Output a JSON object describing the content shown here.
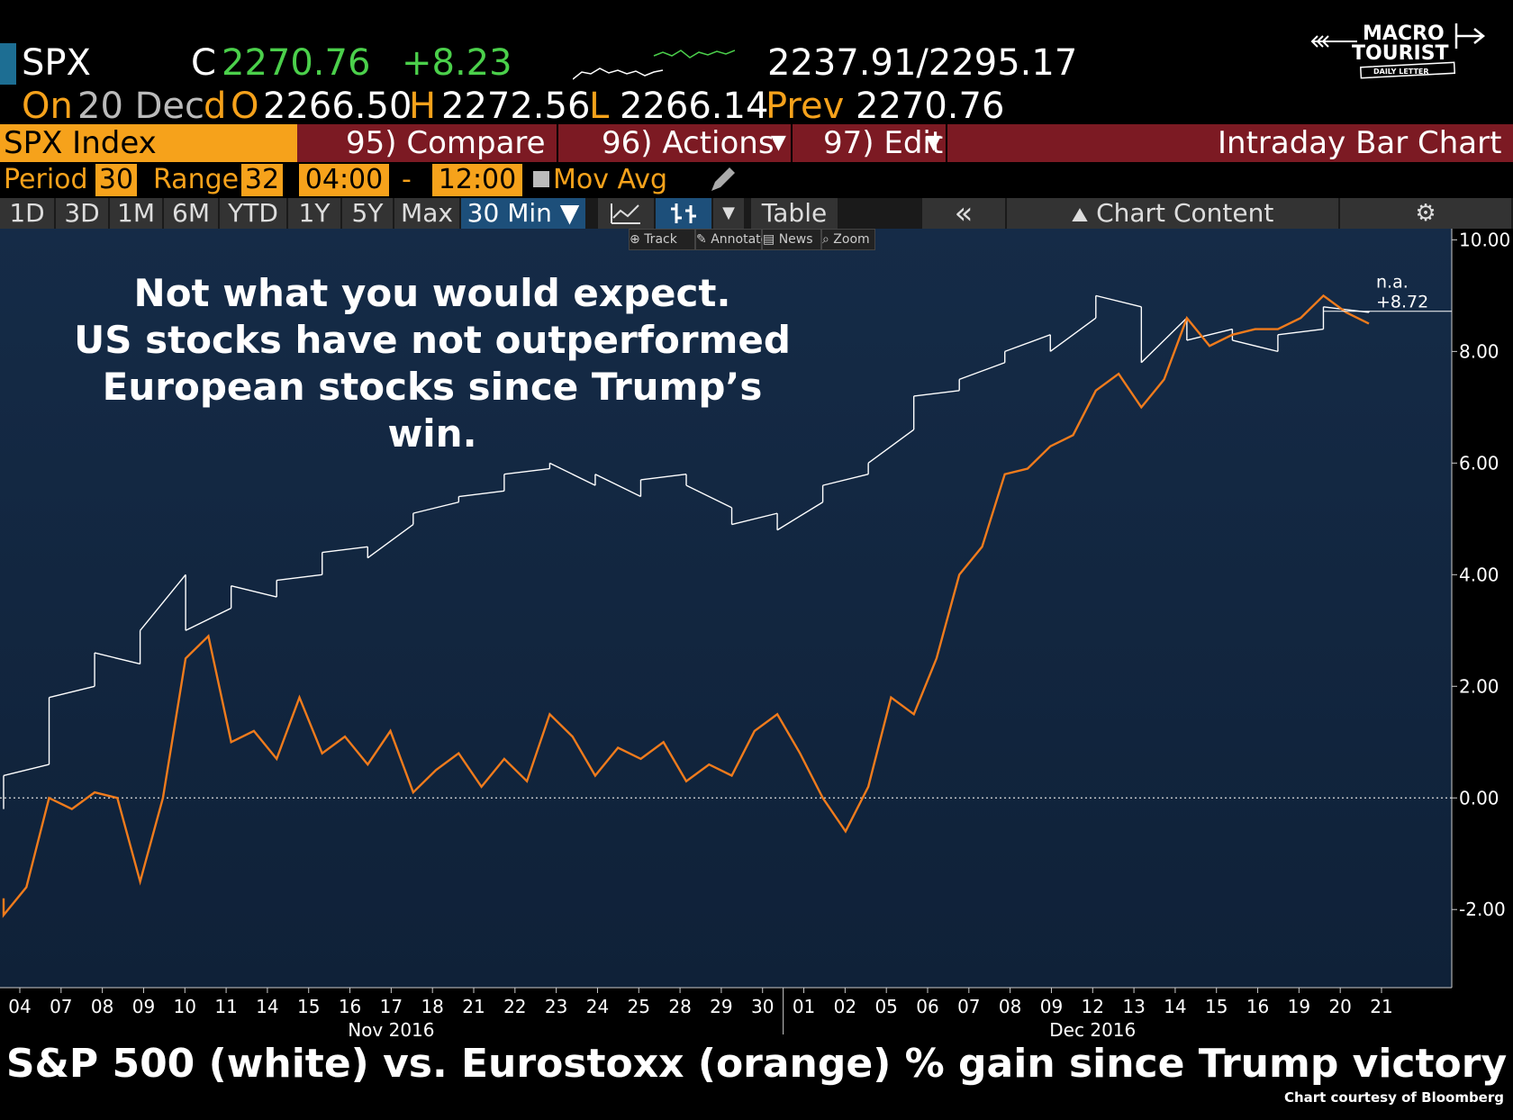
{
  "quote": {
    "ticker": "SPX",
    "close_label": "C",
    "close": "2270.76",
    "change": "+8.23",
    "range": "2237.91/2295.17",
    "on_label": "On",
    "date": "20 Dec",
    "d_label": "d",
    "open_label": "O",
    "open": "2266.50",
    "high_label": "H",
    "high": "2272.56",
    "low_label": "L",
    "low": "2266.14",
    "prev_label": "Prev",
    "prev": "2270.76"
  },
  "logo": {
    "line1": "MACRO",
    "line2": "TOURIST",
    "tagline": "DAILY LETTER"
  },
  "function_bar": {
    "index": "SPX Index",
    "compare": "95) Compare",
    "actions": "96) Actions",
    "edit": "97) Edit",
    "title": "Intraday Bar Chart"
  },
  "period_row": {
    "period_label": "Period",
    "period": "30",
    "range_label": "Range",
    "range": "32",
    "start": "04:00",
    "dash": "-",
    "end": "12:00",
    "mov_avg": "Mov Avg"
  },
  "range_buttons": [
    "1D",
    "3D",
    "1M",
    "6M",
    "YTD",
    "1Y",
    "5Y",
    "Max"
  ],
  "interval_button": "30 Min ▼",
  "table_button": "Table",
  "collapse_button": "«",
  "chart_content_button": "Chart Content",
  "mini_toolbar": [
    "Track",
    "Annotate",
    "News",
    "Zoom"
  ],
  "annotation": [
    "Not what you would expect.",
    "US stocks have not outperformed",
    "European stocks since Trump’s",
    "win."
  ],
  "bottom_title": "S&P 500 (white) vs. Eurostoxx (orange) % gain since Trump victory",
  "credit": "Chart courtesy of Bloomberg",
  "colors": {
    "spx": "#ffffff",
    "eurostoxx": "#f07b1c",
    "amber": "#f6a21b",
    "function_bar": "#7c1a23"
  },
  "chart_data": {
    "type": "line",
    "ylim": [
      -3.4,
      10.2
    ],
    "y_ticks": [
      "10.00",
      "8.00",
      "6.00",
      "4.00",
      "2.00",
      "0.00",
      "-2.00"
    ],
    "y_tick_values": [
      10,
      8,
      6,
      4,
      2,
      0,
      -2
    ],
    "x_ticks": [
      "04",
      "07",
      "08",
      "09",
      "10",
      "11",
      "14",
      "15",
      "16",
      "17",
      "18",
      "21",
      "22",
      "23",
      "24",
      "25",
      "28",
      "29",
      "30",
      "01",
      "02",
      "05",
      "06",
      "07",
      "08",
      "09",
      "12",
      "13",
      "14",
      "15",
      "16",
      "19",
      "20",
      "21"
    ],
    "month_labels": [
      "Nov 2016",
      "Dec 2016"
    ],
    "last_value_label": "n.a.",
    "last_value": "+8.72",
    "series": [
      {
        "name": "S&P 500",
        "color": "#ffffff",
        "values": [
          [
            0,
            -0.2
          ],
          [
            0,
            0.4
          ],
          [
            1,
            0.6
          ],
          [
            1,
            1.8
          ],
          [
            2,
            2.0
          ],
          [
            2,
            2.6
          ],
          [
            3,
            2.4
          ],
          [
            3,
            3.0
          ],
          [
            4,
            4.0
          ],
          [
            4,
            3.0
          ],
          [
            5,
            3.4
          ],
          [
            5,
            3.8
          ],
          [
            6,
            3.6
          ],
          [
            6,
            3.9
          ],
          [
            7,
            4.0
          ],
          [
            7,
            4.4
          ],
          [
            8,
            4.5
          ],
          [
            8,
            4.3
          ],
          [
            9,
            4.9
          ],
          [
            9,
            5.1
          ],
          [
            10,
            5.3
          ],
          [
            10,
            5.4
          ],
          [
            11,
            5.5
          ],
          [
            11,
            5.8
          ],
          [
            12,
            5.9
          ],
          [
            12,
            6.0
          ],
          [
            13,
            5.6
          ],
          [
            13,
            5.8
          ],
          [
            14,
            5.4
          ],
          [
            14,
            5.7
          ],
          [
            15,
            5.8
          ],
          [
            15,
            5.6
          ],
          [
            16,
            5.2
          ],
          [
            16,
            4.9
          ],
          [
            17,
            5.1
          ],
          [
            17,
            4.8
          ],
          [
            18,
            5.3
          ],
          [
            18,
            5.6
          ],
          [
            19,
            5.8
          ],
          [
            19,
            6.0
          ],
          [
            20,
            6.6
          ],
          [
            20,
            7.2
          ],
          [
            21,
            7.3
          ],
          [
            21,
            7.5
          ],
          [
            22,
            7.8
          ],
          [
            22,
            8.0
          ],
          [
            23,
            8.3
          ],
          [
            23,
            8.0
          ],
          [
            24,
            8.6
          ],
          [
            24,
            9.0
          ],
          [
            25,
            8.8
          ],
          [
            25,
            7.8
          ],
          [
            26,
            8.6
          ],
          [
            26,
            8.2
          ],
          [
            27,
            8.4
          ],
          [
            27,
            8.2
          ],
          [
            28,
            8.0
          ],
          [
            28,
            8.3
          ],
          [
            29,
            8.4
          ],
          [
            29,
            8.8
          ],
          [
            30,
            8.7
          ],
          [
            30,
            8.72
          ]
        ]
      },
      {
        "name": "Eurostoxx",
        "color": "#f07b1c",
        "values": [
          [
            0,
            -1.8
          ],
          [
            0,
            -2.1
          ],
          [
            0.5,
            -1.6
          ],
          [
            1,
            0.0
          ],
          [
            1.5,
            -0.2
          ],
          [
            2,
            0.1
          ],
          [
            2.5,
            0.0
          ],
          [
            3,
            -1.5
          ],
          [
            3.5,
            0.0
          ],
          [
            4,
            2.5
          ],
          [
            4.5,
            2.9
          ],
          [
            5,
            1.0
          ],
          [
            5.5,
            1.2
          ],
          [
            6,
            0.7
          ],
          [
            6.5,
            1.8
          ],
          [
            7,
            0.8
          ],
          [
            7.5,
            1.1
          ],
          [
            8,
            0.6
          ],
          [
            8.5,
            1.2
          ],
          [
            9,
            0.1
          ],
          [
            9.5,
            0.5
          ],
          [
            10,
            0.8
          ],
          [
            10.5,
            0.2
          ],
          [
            11,
            0.7
          ],
          [
            11.5,
            0.3
          ],
          [
            12,
            1.5
          ],
          [
            12.5,
            1.1
          ],
          [
            13,
            0.4
          ],
          [
            13.5,
            0.9
          ],
          [
            14,
            0.7
          ],
          [
            14.5,
            1.0
          ],
          [
            15,
            0.3
          ],
          [
            15.5,
            0.6
          ],
          [
            16,
            0.4
          ],
          [
            16.5,
            1.2
          ],
          [
            17,
            1.5
          ],
          [
            17.5,
            0.8
          ],
          [
            18,
            0.0
          ],
          [
            18.5,
            -0.6
          ],
          [
            19,
            0.2
          ],
          [
            19.5,
            1.8
          ],
          [
            20,
            1.5
          ],
          [
            20.5,
            2.5
          ],
          [
            21,
            4.0
          ],
          [
            21.5,
            4.5
          ],
          [
            22,
            5.8
          ],
          [
            22.5,
            5.9
          ],
          [
            23,
            6.3
          ],
          [
            23.5,
            6.5
          ],
          [
            24,
            7.3
          ],
          [
            24.5,
            7.6
          ],
          [
            25,
            7.0
          ],
          [
            25.5,
            7.5
          ],
          [
            26,
            8.6
          ],
          [
            26.5,
            8.1
          ],
          [
            27,
            8.3
          ],
          [
            27.5,
            8.4
          ],
          [
            28,
            8.4
          ],
          [
            28.5,
            8.6
          ],
          [
            29,
            9.0
          ],
          [
            29.5,
            8.7
          ],
          [
            30,
            8.5
          ]
        ]
      }
    ]
  }
}
